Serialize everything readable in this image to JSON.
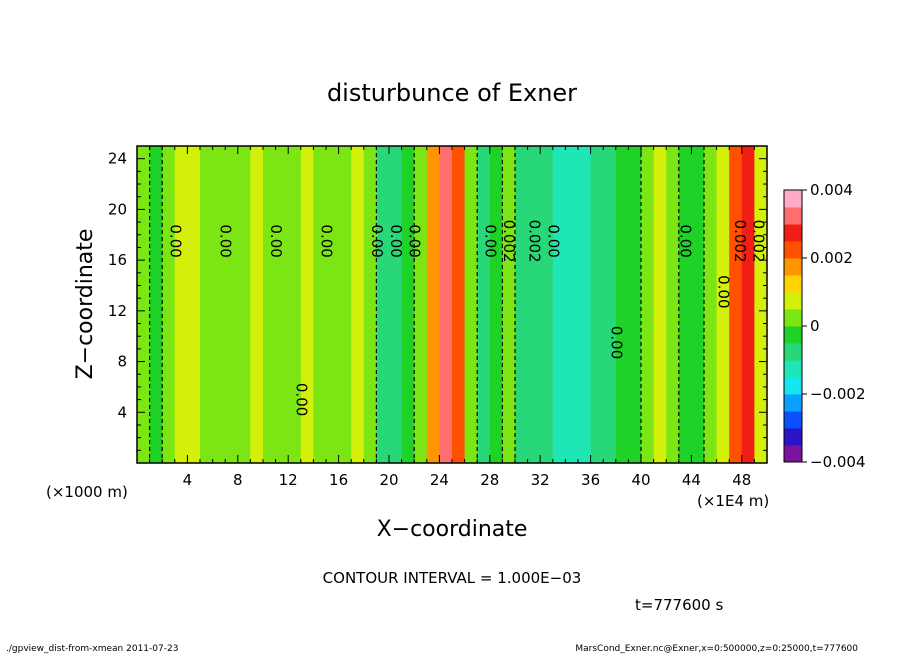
{
  "chart_data": {
    "type": "heatmap",
    "title": "disturbunce of Exner",
    "xlabel": "X−coordinate",
    "ylabel": "Z−coordinate",
    "x_unit_label": "(×1000 m)",
    "x_scale_label": "(×1E4 m)",
    "xlim": [
      0,
      50
    ],
    "ylim": [
      0,
      25
    ],
    "x_ticks": [
      4,
      8,
      12,
      16,
      20,
      24,
      28,
      32,
      36,
      40,
      44,
      48
    ],
    "y_ticks": [
      4,
      8,
      12,
      16,
      20,
      24
    ],
    "colorbar": {
      "range": [
        -0.004,
        0.004
      ],
      "labels": [
        "0.004",
        "0.002",
        "0",
        "−0.002",
        "−0.004"
      ],
      "label_values": [
        0.004,
        0.002,
        0,
        -0.002,
        -0.004
      ],
      "colors": [
        "#7a14a0",
        "#2a14c8",
        "#0a50ff",
        "#0aa0ff",
        "#14e6f0",
        "#1ee6b4",
        "#28d878",
        "#1ed228",
        "#7ce614",
        "#d2f00a",
        "#ffd200",
        "#ff9600",
        "#ff5000",
        "#f01e14",
        "#ff6e6e",
        "#ffaac8"
      ]
    },
    "columns": [
      {
        "x": 0.5,
        "value": 0.0001
      },
      {
        "x": 1.5,
        "value": -0.0002
      },
      {
        "x": 2.5,
        "value": 0.0003
      },
      {
        "x": 3.5,
        "value": 0.0008
      },
      {
        "x": 4.5,
        "value": 0.0005
      },
      {
        "x": 5.5,
        "value": 0.0001
      },
      {
        "x": 6.5,
        "value": 0.0
      },
      {
        "x": 7.5,
        "value": 0.0002
      },
      {
        "x": 8.5,
        "value": 0.0004
      },
      {
        "x": 9.5,
        "value": 0.0007
      },
      {
        "x": 10.5,
        "value": 0.0003
      },
      {
        "x": 11.5,
        "value": 0.0001
      },
      {
        "x": 12.5,
        "value": 0.0002
      },
      {
        "x": 13.5,
        "value": 0.0006
      },
      {
        "x": 14.5,
        "value": 0.0002
      },
      {
        "x": 15.5,
        "value": 0.0001
      },
      {
        "x": 16.5,
        "value": 0.0003
      },
      {
        "x": 17.5,
        "value": 0.0007
      },
      {
        "x": 18.5,
        "value": 0.0
      },
      {
        "x": 19.5,
        "value": -0.0006
      },
      {
        "x": 20.5,
        "value": -0.0009
      },
      {
        "x": 21.5,
        "value": -0.0005
      },
      {
        "x": 22.5,
        "value": 0.0002
      },
      {
        "x": 23.5,
        "value": 0.0015
      },
      {
        "x": 24.5,
        "value": 0.0032
      },
      {
        "x": 25.5,
        "value": 0.0022
      },
      {
        "x": 26.5,
        "value": 0.0004
      },
      {
        "x": 27.5,
        "value": -0.0006
      },
      {
        "x": 28.5,
        "value": -0.0003
      },
      {
        "x": 29.5,
        "value": 0.0003
      },
      {
        "x": 30.5,
        "value": -0.0006
      },
      {
        "x": 31.5,
        "value": -0.0009
      },
      {
        "x": 32.5,
        "value": -0.001
      },
      {
        "x": 33.5,
        "value": -0.0011
      },
      {
        "x": 34.5,
        "value": -0.0012
      },
      {
        "x": 35.5,
        "value": -0.0011
      },
      {
        "x": 36.5,
        "value": -0.0009
      },
      {
        "x": 37.5,
        "value": -0.0006
      },
      {
        "x": 38.5,
        "value": -0.0004
      },
      {
        "x": 39.5,
        "value": -0.0001
      },
      {
        "x": 40.5,
        "value": 0.0001
      },
      {
        "x": 41.5,
        "value": 0.0005
      },
      {
        "x": 42.5,
        "value": 0.0003
      },
      {
        "x": 43.5,
        "value": -0.0004
      },
      {
        "x": 44.5,
        "value": -0.0002
      },
      {
        "x": 45.5,
        "value": 0.0002
      },
      {
        "x": 46.5,
        "value": 0.0008
      },
      {
        "x": 47.5,
        "value": 0.0022
      },
      {
        "x": 48.5,
        "value": 0.0028
      },
      {
        "x": 49.5,
        "value": 0.0009
      }
    ],
    "contour_labels": [
      {
        "text": "0.00",
        "x": 3.0,
        "z": 17.5
      },
      {
        "text": "0.00",
        "x": 7.0,
        "z": 17.5
      },
      {
        "text": "0.00",
        "x": 11.0,
        "z": 17.5
      },
      {
        "text": "0.00",
        "x": 15.0,
        "z": 17.5
      },
      {
        "text": "0.00",
        "x": 19.0,
        "z": 17.5
      },
      {
        "text": "0.00",
        "x": 20.5,
        "z": 17.5
      },
      {
        "text": "0.00",
        "x": 22.0,
        "z": 17.5
      },
      {
        "text": "0.00",
        "x": 13.0,
        "z": 5.0
      },
      {
        "text": "0.00",
        "x": 28.0,
        "z": 17.5
      },
      {
        "text": "0.002",
        "x": 29.5,
        "z": 17.5
      },
      {
        "text": "0.002",
        "x": 31.5,
        "z": 17.5
      },
      {
        "text": "0.00",
        "x": 33.0,
        "z": 17.5
      },
      {
        "text": "0.00",
        "x": 38.0,
        "z": 9.5
      },
      {
        "text": "0.00",
        "x": 43.5,
        "z": 17.5
      },
      {
        "text": "0.00",
        "x": 46.5,
        "z": 13.5
      },
      {
        "text": "0.002",
        "x": 47.8,
        "z": 17.5
      },
      {
        "text": "0.002",
        "x": 49.3,
        "z": 17.5
      }
    ],
    "annotation": "CONTOUR INTERVAL = 1.000E−03",
    "time_label": "t=777600 s"
  },
  "footer": {
    "left": "./gpview_dist-from-xmean  2011-07-23",
    "right": "MarsCond_Exner.nc@Exner,x=0:500000,z=0:25000,t=777600"
  }
}
